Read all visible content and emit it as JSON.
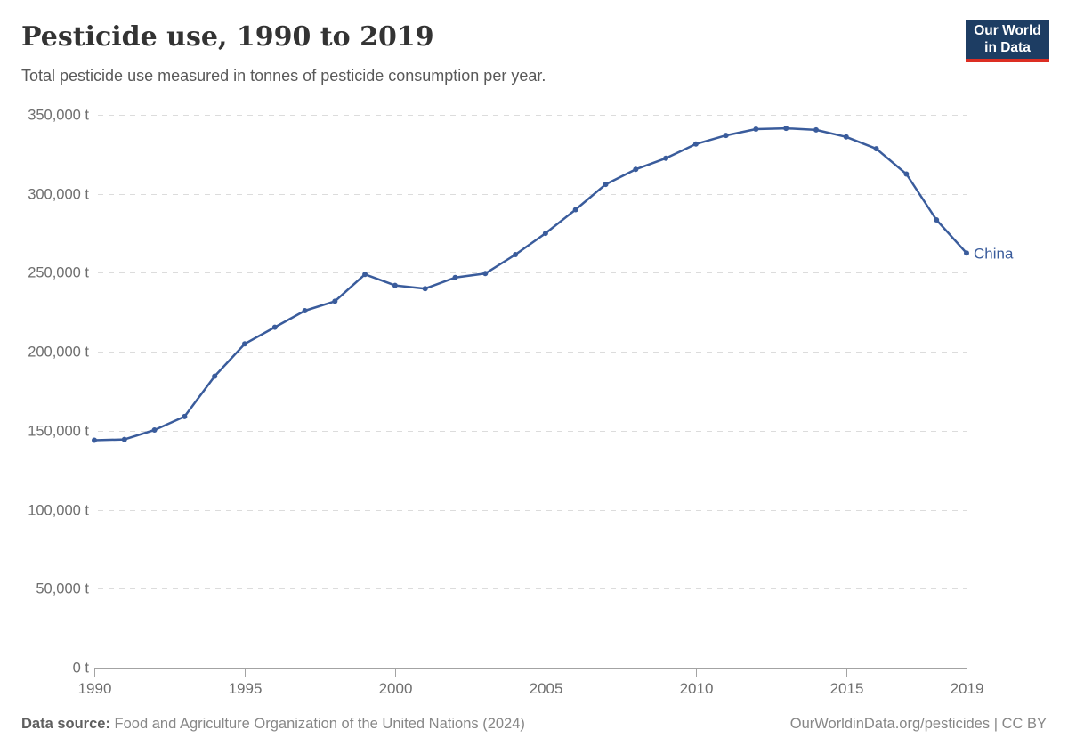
{
  "header": {
    "title": "Pesticide use, 1990 to 2019",
    "subtitle": "Total pesticide use measured in tonnes of pesticide consumption per year.",
    "logo": {
      "line1": "Our World",
      "line2": "in Data",
      "bg_color": "#1d3d63",
      "accent_color": "#dc2e23"
    }
  },
  "chart_data": {
    "type": "line",
    "title": "Pesticide use, 1990 to 2019",
    "x": [
      1990,
      1991,
      1992,
      1993,
      1994,
      1995,
      1996,
      1997,
      1998,
      1999,
      2000,
      2001,
      2002,
      2003,
      2004,
      2005,
      2006,
      2007,
      2008,
      2009,
      2010,
      2011,
      2012,
      2013,
      2014,
      2015,
      2016,
      2017,
      2018,
      2019
    ],
    "series": [
      {
        "name": "China",
        "color": "#3a5c9c",
        "values": [
          144000,
          144500,
          150500,
          159000,
          184500,
          205000,
          215500,
          226000,
          232000,
          249000,
          242000,
          240000,
          247000,
          249500,
          261500,
          275000,
          290000,
          306000,
          315500,
          322500,
          331500,
          337000,
          341000,
          341500,
          340500,
          336000,
          328500,
          312500,
          283500,
          262500
        ]
      }
    ],
    "xlabel": "",
    "ylabel": "",
    "ylim": [
      0,
      350000
    ],
    "xlim": [
      1990,
      2019
    ],
    "y_ticks": [
      0,
      50000,
      100000,
      150000,
      200000,
      250000,
      300000,
      350000
    ],
    "y_tick_labels": [
      "0 t",
      "50,000 t",
      "100,000 t",
      "150,000 t",
      "200,000 t",
      "250,000 t",
      "300,000 t",
      "350,000 t"
    ],
    "x_ticks": [
      1990,
      1995,
      2000,
      2005,
      2010,
      2015,
      2019
    ],
    "x_tick_labels": [
      "1990",
      "1995",
      "2000",
      "2005",
      "2010",
      "2015",
      "2019"
    ],
    "grid": "horizontal-dashed",
    "legend_position": "end-of-line-label",
    "end_label": "China"
  },
  "footer": {
    "source_label": "Data source:",
    "source_text": "Food and Agriculture Organization of the United Nations (2024)",
    "attribution": "OurWorldinData.org/pesticides | CC BY"
  },
  "style_colors": {
    "grid_line": "#dcdcdc",
    "axis_line": "#a3a3a3",
    "axis_text": "#6e6e6e"
  }
}
